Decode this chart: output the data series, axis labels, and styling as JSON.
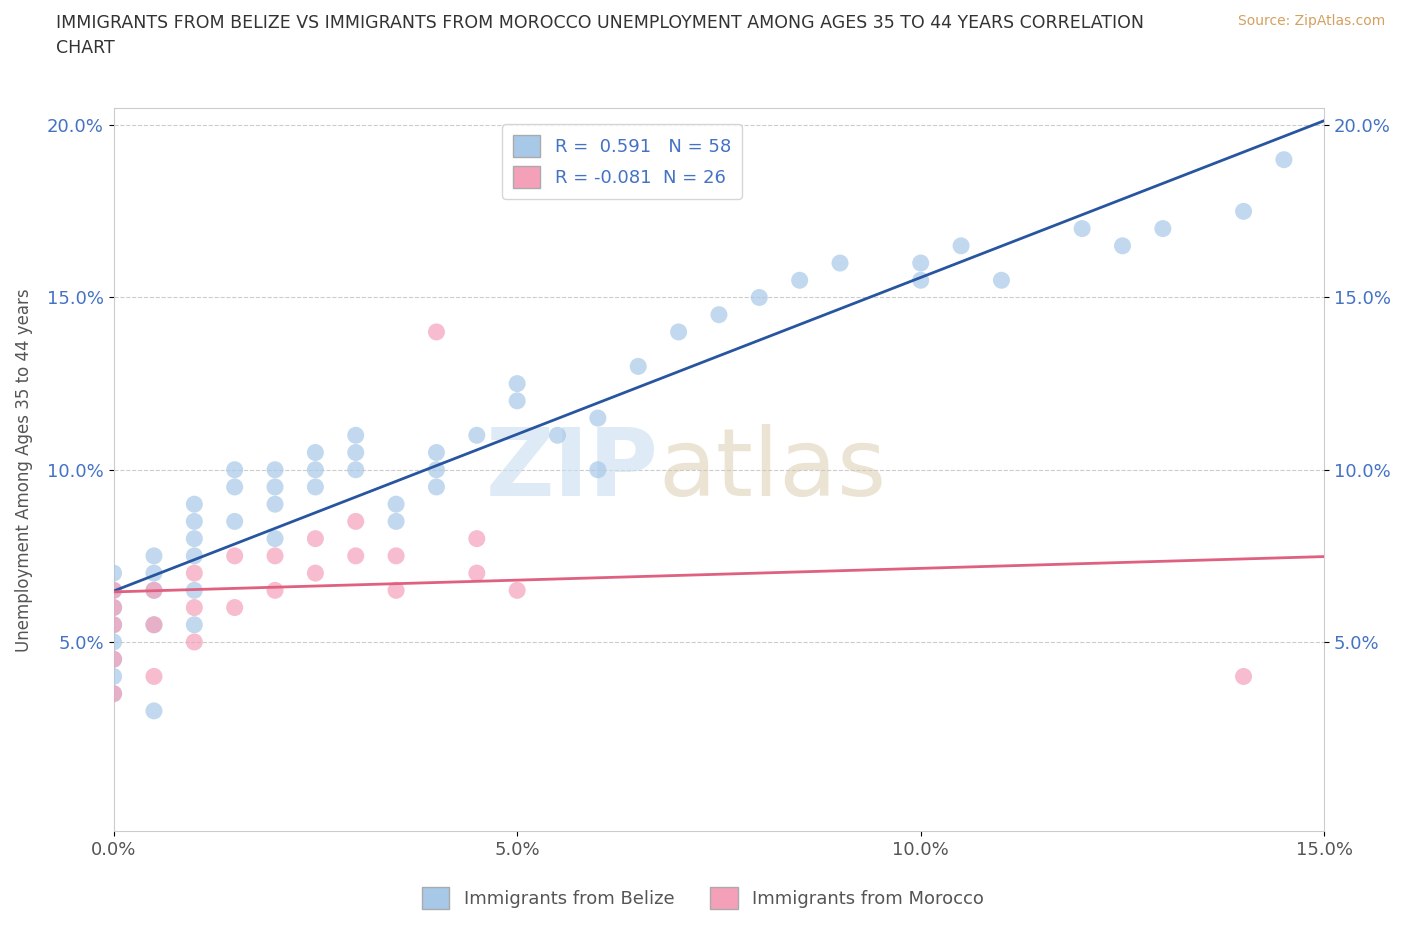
{
  "title": "IMMIGRANTS FROM BELIZE VS IMMIGRANTS FROM MOROCCO UNEMPLOYMENT AMONG AGES 35 TO 44 YEARS CORRELATION\nCHART",
  "source": "Source: ZipAtlas.com",
  "ylabel": "Unemployment Among Ages 35 to 44 years",
  "xlim": [
    0,
    0.15
  ],
  "ylim": [
    -0.005,
    0.205
  ],
  "xticks": [
    0.0,
    0.05,
    0.1,
    0.15
  ],
  "xticklabels": [
    "0.0%",
    "5.0%",
    "10.0%",
    "15.0%"
  ],
  "yticks_left": [
    0.05,
    0.1,
    0.15,
    0.2
  ],
  "yticklabels_left": [
    "5.0%",
    "10.0%",
    "15.0%",
    "20.0%"
  ],
  "belize_color": "#a8c8e8",
  "morocco_color": "#f4a0b8",
  "belize_line_color": "#2855a0",
  "morocco_line_color": "#e06080",
  "belize_R": 0.591,
  "belize_N": 58,
  "morocco_R": -0.081,
  "morocco_N": 26,
  "belize_x": [
    0.0,
    0.0,
    0.0,
    0.0,
    0.0,
    0.0,
    0.0,
    0.0,
    0.005,
    0.005,
    0.005,
    0.005,
    0.005,
    0.01,
    0.01,
    0.01,
    0.01,
    0.01,
    0.01,
    0.015,
    0.015,
    0.015,
    0.02,
    0.02,
    0.02,
    0.02,
    0.025,
    0.025,
    0.025,
    0.03,
    0.03,
    0.03,
    0.035,
    0.035,
    0.04,
    0.04,
    0.04,
    0.045,
    0.05,
    0.05,
    0.055,
    0.06,
    0.06,
    0.065,
    0.07,
    0.075,
    0.08,
    0.085,
    0.09,
    0.1,
    0.1,
    0.105,
    0.11,
    0.12,
    0.125,
    0.13,
    0.14,
    0.145
  ],
  "belize_y": [
    0.07,
    0.065,
    0.06,
    0.055,
    0.05,
    0.045,
    0.04,
    0.035,
    0.075,
    0.07,
    0.065,
    0.055,
    0.03,
    0.09,
    0.085,
    0.08,
    0.075,
    0.065,
    0.055,
    0.1,
    0.095,
    0.085,
    0.1,
    0.095,
    0.09,
    0.08,
    0.105,
    0.1,
    0.095,
    0.11,
    0.105,
    0.1,
    0.09,
    0.085,
    0.105,
    0.1,
    0.095,
    0.11,
    0.125,
    0.12,
    0.11,
    0.115,
    0.1,
    0.13,
    0.14,
    0.145,
    0.15,
    0.155,
    0.16,
    0.155,
    0.16,
    0.165,
    0.155,
    0.17,
    0.165,
    0.17,
    0.175,
    0.19
  ],
  "morocco_x": [
    0.0,
    0.0,
    0.0,
    0.0,
    0.0,
    0.005,
    0.005,
    0.005,
    0.01,
    0.01,
    0.01,
    0.015,
    0.015,
    0.02,
    0.02,
    0.025,
    0.025,
    0.03,
    0.03,
    0.035,
    0.035,
    0.04,
    0.045,
    0.045,
    0.05,
    0.14
  ],
  "morocco_y": [
    0.065,
    0.06,
    0.055,
    0.045,
    0.035,
    0.065,
    0.055,
    0.04,
    0.07,
    0.06,
    0.05,
    0.075,
    0.06,
    0.075,
    0.065,
    0.08,
    0.07,
    0.085,
    0.075,
    0.075,
    0.065,
    0.14,
    0.08,
    0.07,
    0.065,
    0.04
  ],
  "watermark_zip": "ZIP",
  "watermark_atlas": "atlas",
  "background_color": "#ffffff",
  "grid_color": "#cccccc",
  "belize_label": "Immigrants from Belize",
  "morocco_label": "Immigrants from Morocco",
  "legend_R_label1": "R =  0.591   N = 58",
  "legend_R_label2": "R = -0.081  N = 26"
}
